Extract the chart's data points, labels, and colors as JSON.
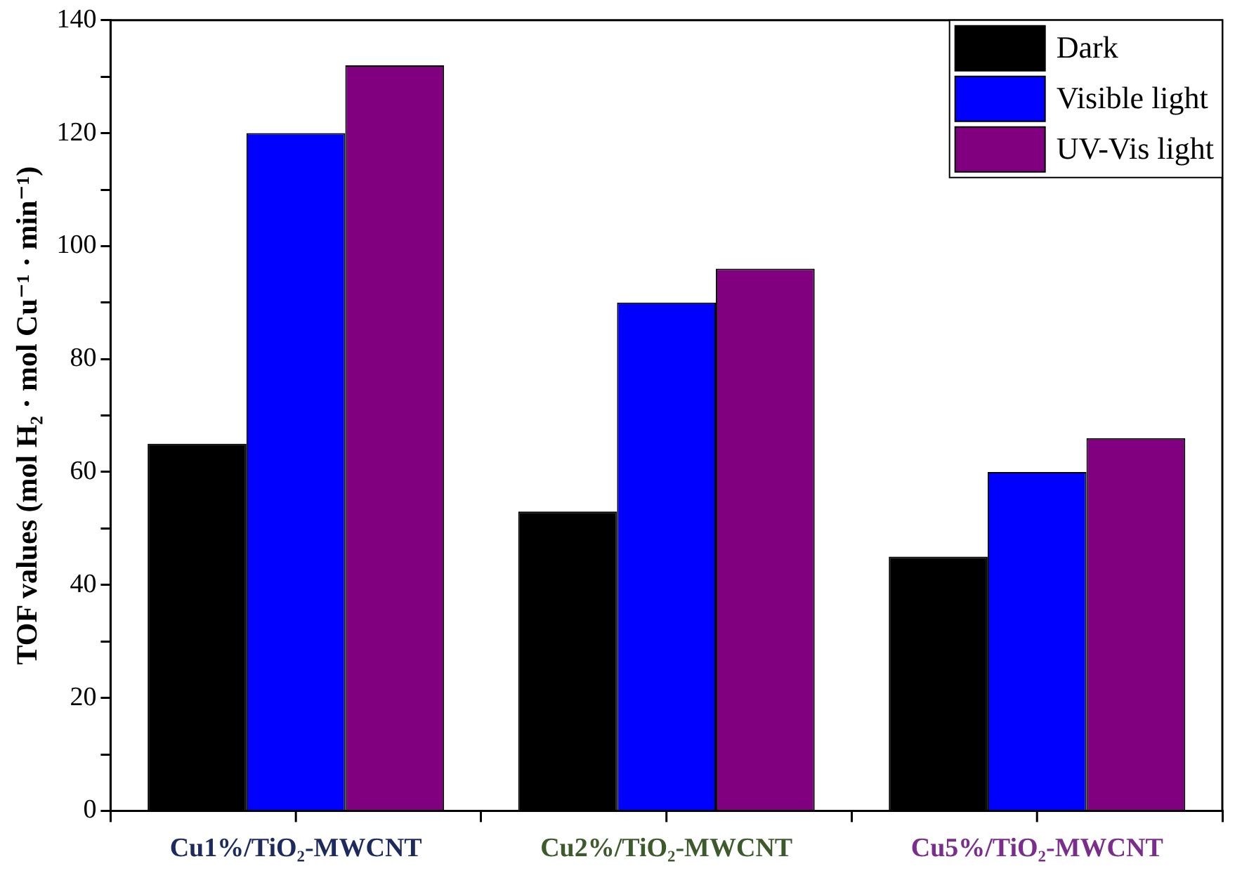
{
  "chart_data": {
    "type": "bar",
    "ylabel": "TOF values (mol H₂ · mol Cu⁻¹ · min⁻¹)",
    "categories": [
      "Cu1%/TiO₂-MWCNT",
      "Cu2%/TiO₂-MWCNT",
      "Cu5%/TiO₂-MWCNT"
    ],
    "series": [
      {
        "name": "Dark",
        "color": "#000000",
        "values": [
          65,
          53,
          45
        ]
      },
      {
        "name": "Visible light",
        "color": "#0000ff",
        "values": [
          120,
          90,
          60
        ]
      },
      {
        "name": "UV-Vis light",
        "color": "#800080",
        "values": [
          132,
          96,
          66
        ]
      }
    ],
    "ylim": [
      0,
      140
    ],
    "yticks": [
      0,
      {
        "value": 10,
        "label": null
      },
      20,
      {
        "value": 30,
        "label": null
      },
      40,
      {
        "value": 50,
        "label": null
      },
      60,
      {
        "value": 70,
        "label": null
      },
      80,
      {
        "value": 90,
        "label": null
      },
      100,
      {
        "value": 110,
        "label": null
      },
      120,
      {
        "value": 130,
        "label": null
      },
      140
    ],
    "grid": false,
    "legend": "top right"
  }
}
